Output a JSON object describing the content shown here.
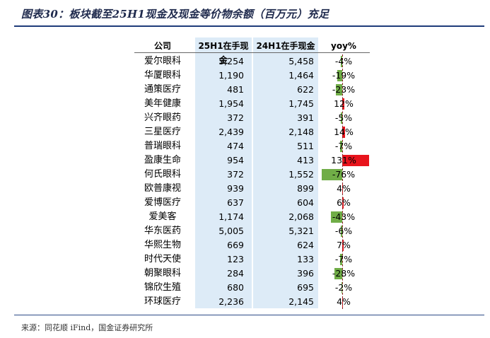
{
  "title": "图表30：板块截至25H1现金及现金等价物余额（百万元）充足",
  "source": "来源：同花顺 iFind，国金证券研究所",
  "colors": {
    "positive": "#e8141c",
    "negative": "#70ad47",
    "shade": "#ddebf7"
  },
  "table": {
    "headers": {
      "company": "公司",
      "h25": "25H1在手现金",
      "h24": "24H1在手现金",
      "yoy": "yoy%"
    },
    "rows": [
      {
        "name": "爱尔眼科",
        "h25": "5,254",
        "h24": "5,458",
        "yoy": "-4%",
        "pct": -4
      },
      {
        "name": "华厦眼科",
        "h25": "1,190",
        "h24": "1,464",
        "yoy": "-19%",
        "pct": -19
      },
      {
        "name": "通策医疗",
        "h25": "481",
        "h24": "622",
        "yoy": "-23%",
        "pct": -23
      },
      {
        "name": "美年健康",
        "h25": "1,954",
        "h24": "1,745",
        "yoy": "12%",
        "pct": 12
      },
      {
        "name": "兴齐眼药",
        "h25": "372",
        "h24": "391",
        "yoy": "-5%",
        "pct": -5
      },
      {
        "name": "三星医疗",
        "h25": "2,439",
        "h24": "2,148",
        "yoy": "14%",
        "pct": 14
      },
      {
        "name": "普瑞眼科",
        "h25": "474",
        "h24": "511",
        "yoy": "-7%",
        "pct": -7
      },
      {
        "name": "盈康生命",
        "h25": "954",
        "h24": "413",
        "yoy": "131%",
        "pct": 131
      },
      {
        "name": "何氏眼科",
        "h25": "372",
        "h24": "1,552",
        "yoy": "-76%",
        "pct": -76
      },
      {
        "name": "欧普康视",
        "h25": "939",
        "h24": "899",
        "yoy": "4%",
        "pct": 4
      },
      {
        "name": "爱博医疗",
        "h25": "637",
        "h24": "604",
        "yoy": "6%",
        "pct": 6
      },
      {
        "name": "爱美客",
        "h25": "1,174",
        "h24": "2,068",
        "yoy": "-43%",
        "pct": -43
      },
      {
        "name": "华东医药",
        "h25": "5,005",
        "h24": "5,321",
        "yoy": "-6%",
        "pct": -6
      },
      {
        "name": "华熙生物",
        "h25": "669",
        "h24": "624",
        "yoy": "7%",
        "pct": 7
      },
      {
        "name": "时代天使",
        "h25": "123",
        "h24": "133",
        "yoy": "-7%",
        "pct": -7
      },
      {
        "name": "朝聚眼科",
        "h25": "284",
        "h24": "396",
        "yoy": "-28%",
        "pct": -28
      },
      {
        "name": "锦欣生殖",
        "h25": "680",
        "h24": "695",
        "yoy": "-2%",
        "pct": -2
      },
      {
        "name": "环球医疗",
        "h25": "2,236",
        "h24": "2,145",
        "yoy": "4%",
        "pct": 4
      }
    ]
  }
}
